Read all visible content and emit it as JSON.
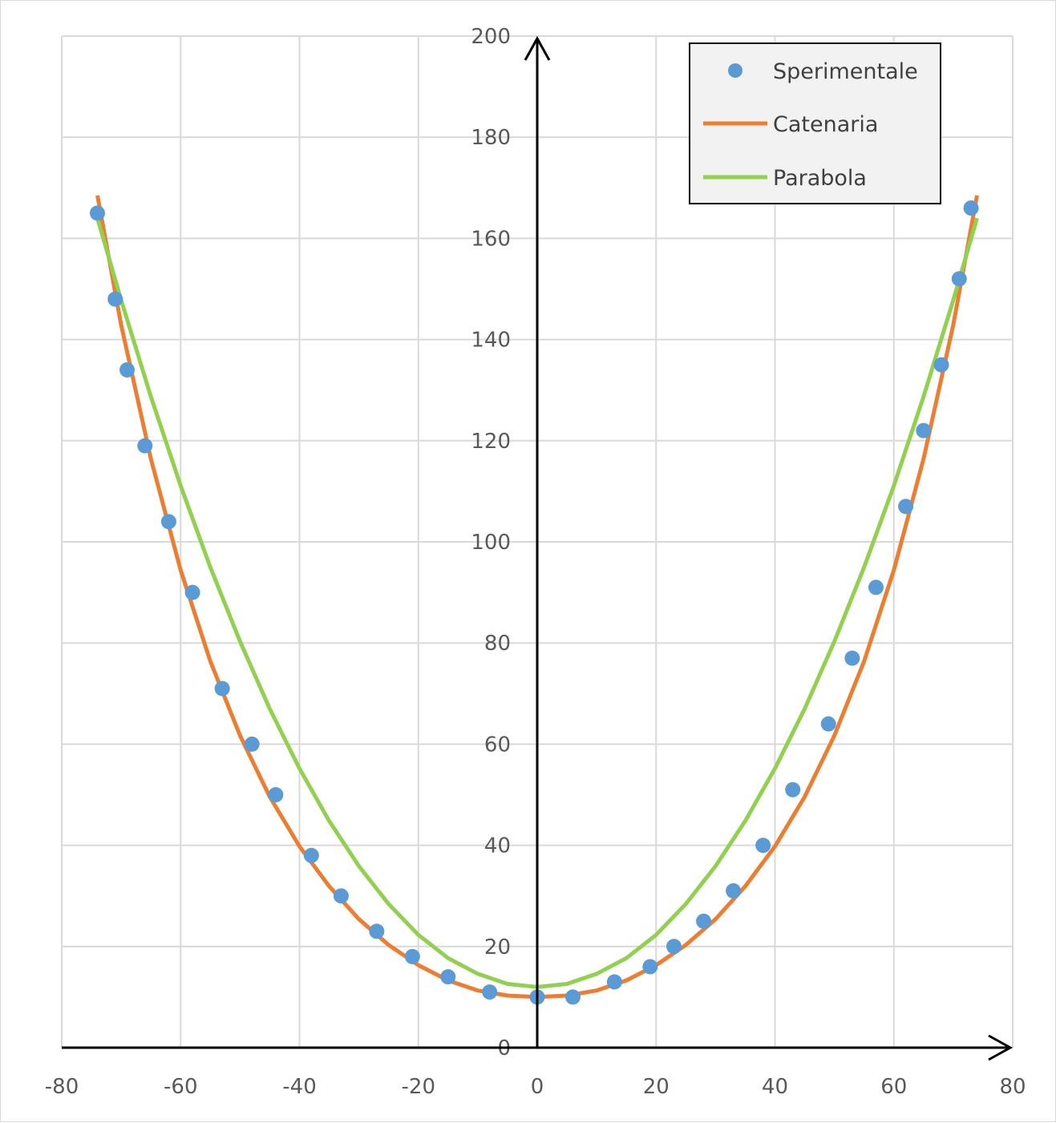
{
  "chart_data": {
    "type": "scatter",
    "xlim": [
      -80,
      80
    ],
    "ylim": [
      0,
      200
    ],
    "x_ticks": [
      -80,
      -60,
      -40,
      -20,
      0,
      20,
      40,
      60,
      80
    ],
    "y_ticks": [
      0,
      20,
      40,
      60,
      80,
      100,
      120,
      140,
      160,
      180,
      200
    ],
    "grid": true,
    "legend_position": "top-right",
    "colors": {
      "points": "#5b9bd5",
      "catenaria": "#ed7d31",
      "parabola": "#92d050",
      "axis": "#000000",
      "grid": "#d9d9d9"
    },
    "series": [
      {
        "name": "Sperimentale",
        "kind": "points",
        "x": [
          -74,
          -71,
          -69,
          -66,
          -62,
          -58,
          -53,
          -48,
          -44,
          -38,
          -33,
          -27,
          -21,
          -15,
          -8,
          0,
          6,
          13,
          19,
          23,
          28,
          33,
          38,
          43,
          49,
          53,
          57,
          62,
          65,
          68,
          71,
          73
        ],
        "y": [
          165,
          148,
          134,
          119,
          104,
          90,
          71,
          60,
          50,
          38,
          30,
          23,
          18,
          14,
          11,
          10,
          10,
          13,
          16,
          20,
          25,
          31,
          40,
          51,
          64,
          77,
          91,
          107,
          122,
          135,
          152,
          166
        ]
      },
      {
        "name": "Catenaria",
        "kind": "line",
        "x": [
          -74,
          -70,
          -65,
          -60,
          -55,
          -50,
          -45,
          -40,
          -35,
          -30,
          -25,
          -20,
          -15,
          -10,
          -5,
          0,
          5,
          10,
          15,
          20,
          25,
          30,
          35,
          40,
          45,
          50,
          55,
          60,
          65,
          70,
          74
        ],
        "y": [
          168.5,
          142.9,
          116.4,
          94.4,
          76.4,
          61.7,
          49.6,
          39.8,
          31.9,
          25.4,
          20.3,
          16.3,
          13.3,
          11.3,
          10.3,
          10.0,
          10.3,
          11.3,
          13.3,
          16.3,
          20.3,
          25.4,
          31.9,
          39.8,
          49.6,
          61.7,
          76.4,
          94.4,
          116.4,
          142.9,
          168.5
        ]
      },
      {
        "name": "Parabola",
        "kind": "line",
        "x": [
          -74,
          -70,
          -65,
          -60,
          -55,
          -50,
          -45,
          -40,
          -35,
          -30,
          -25,
          -20,
          -15,
          -10,
          -5,
          0,
          5,
          10,
          15,
          20,
          25,
          30,
          35,
          40,
          45,
          50,
          55,
          60,
          65,
          70,
          74
        ],
        "y": [
          164,
          147.8,
          128.7,
          111.1,
          95.0,
          80.3,
          67.0,
          55.2,
          44.8,
          35.9,
          28.4,
          22.3,
          17.7,
          14.6,
          12.6,
          12.0,
          12.6,
          14.6,
          17.7,
          22.3,
          28.4,
          35.9,
          44.8,
          55.2,
          67.0,
          80.3,
          95.0,
          111.1,
          128.7,
          147.8,
          164
        ]
      }
    ]
  }
}
